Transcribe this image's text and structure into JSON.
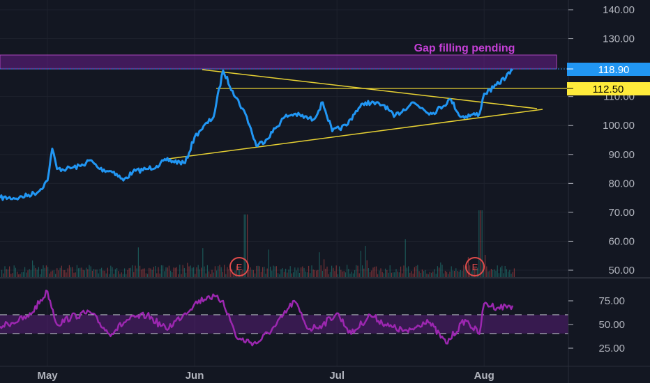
{
  "chart_data": [
    {
      "type": "line",
      "title": "",
      "x_ticks": [
        "May",
        "Jun",
        "Jul",
        "Aug"
      ],
      "y_ticks": [
        "50.00",
        "60.00",
        "70.00",
        "80.00",
        "90.00",
        "100.00",
        "110.00",
        "120.00",
        "130.00",
        "140.00"
      ],
      "ylim": [
        47,
        144
      ],
      "grid": true,
      "series": [
        {
          "color": "#2196f3",
          "x": [
            "Apr 21",
            "Apr 25",
            "Apr 29",
            "May 1",
            "May 2",
            "May 3",
            "May 5",
            "May 8",
            "May 10",
            "May 12",
            "May 15",
            "May 17",
            "May 19",
            "May 22",
            "May 24",
            "May 26",
            "May 30",
            "Jun 1",
            "Jun 2",
            "Jun 5",
            "Jun 7",
            "Jun 9",
            "Jun 12",
            "Jun 14",
            "Jun 16",
            "Jun 20",
            "Jun 22",
            "Jun 26",
            "Jun 28",
            "Jun 30",
            "Jul 3",
            "Jul 5",
            "Jul 7",
            "Jul 11",
            "Jul 13",
            "Jul 17",
            "Jul 19",
            "Jul 21",
            "Jul 25",
            "Jul 27",
            "Jul 31",
            "Aug 1",
            "Aug 3",
            "Aug 7"
          ],
          "y": [
            75,
            75,
            77,
            81,
            92,
            85,
            85,
            86,
            88,
            85,
            84,
            81,
            84,
            85,
            86,
            88,
            87,
            96,
            98,
            103,
            119,
            112,
            103,
            93,
            95,
            103,
            104,
            102,
            108,
            98,
            100,
            105,
            108,
            107,
            103,
            108,
            106,
            104,
            109,
            103,
            104,
            111,
            113,
            119
          ]
        }
      ],
      "levels": [
        {
          "label": "118.90",
          "value": 118.9,
          "color": "#2196f3"
        },
        {
          "label": "112.50",
          "value": 112.5,
          "color": "#ffeb3b"
        }
      ],
      "zone": {
        "from": 119,
        "to": 123.5,
        "label": "Gap filling pending"
      },
      "annotations": [
        "E",
        "E"
      ],
      "pattern": "symmetrical triangle"
    },
    {
      "type": "line",
      "title": "",
      "y_ticks": [
        "25.00",
        "50.00",
        "75.00"
      ],
      "ylim": [
        10,
        93
      ],
      "bands": [
        40,
        60
      ],
      "series": [
        {
          "color": "#9c27b0",
          "x": [
            "Apr 21",
            "Apr 27",
            "May 1",
            "May 3",
            "May 6",
            "May 10",
            "May 14",
            "May 18",
            "May 22",
            "May 26",
            "May 30",
            "Jun 1",
            "Jun 4",
            "Jun 7",
            "Jun 10",
            "Jun 14",
            "Jun 18",
            "Jun 22",
            "Jun 25",
            "Jun 28",
            "Jul 1",
            "Jul 4",
            "Jul 8",
            "Jul 12",
            "Jul 16",
            "Jul 20",
            "Jul 24",
            "Jul 28",
            "Jul 31",
            "Aug 1",
            "Aug 4",
            "Aug 7"
          ],
          "y": [
            48,
            58,
            85,
            50,
            58,
            63,
            40,
            55,
            60,
            45,
            62,
            72,
            80,
            75,
            35,
            30,
            48,
            75,
            45,
            50,
            62,
            40,
            60,
            48,
            42,
            55,
            30,
            55,
            40,
            72,
            68,
            70
          ]
        }
      ]
    }
  ]
}
